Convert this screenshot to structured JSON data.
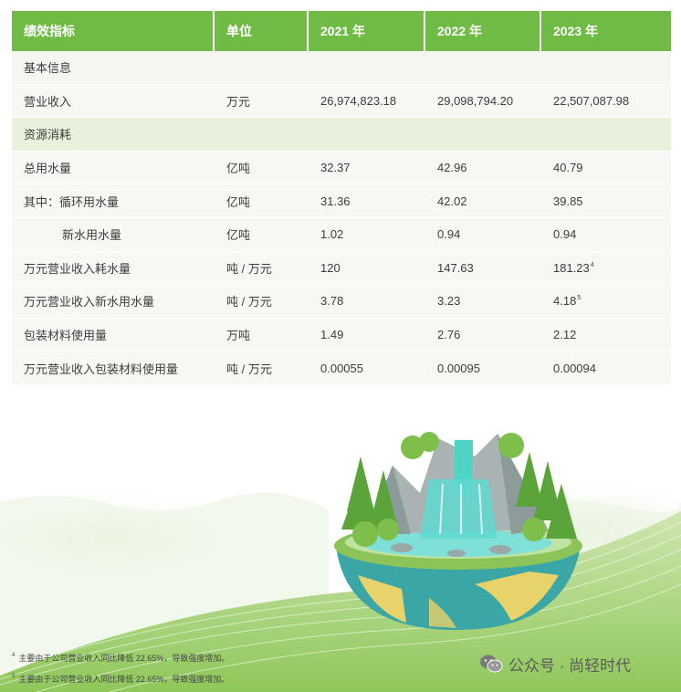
{
  "table": {
    "headers": [
      "绩效指标",
      "单位",
      "2021 年",
      "2022 年",
      "2023 年"
    ],
    "rows": [
      {
        "type": "section",
        "indicator": "基本信息",
        "unit": "",
        "v2021": "",
        "v2022": "",
        "v2023": "",
        "note2023": ""
      },
      {
        "type": "data",
        "indicator": "营业收入",
        "unit": "万元",
        "v2021": "26,974,823.18",
        "v2022": "29,098,794.20",
        "v2023": "22,507,087.98",
        "note2023": ""
      },
      {
        "type": "section",
        "indicator": "资源消耗",
        "unit": "",
        "v2021": "",
        "v2022": "",
        "v2023": "",
        "note2023": ""
      },
      {
        "type": "data",
        "indicator": "总用水量",
        "unit": "亿吨",
        "v2021": "32.37",
        "v2022": "42.96",
        "v2023": "40.79",
        "note2023": ""
      },
      {
        "type": "data",
        "indicator": "其中：循环用水量",
        "unit": "亿吨",
        "v2021": "31.36",
        "v2022": "42.02",
        "v2023": "39.85",
        "note2023": ""
      },
      {
        "type": "data-indent",
        "indicator": "新水用水量",
        "unit": "亿吨",
        "v2021": "1.02",
        "v2022": "0.94",
        "v2023": "0.94",
        "note2023": ""
      },
      {
        "type": "data",
        "indicator": "万元营业收入耗水量",
        "unit": "吨 / 万元",
        "v2021": "120",
        "v2022": "147.63",
        "v2023": "181.23",
        "note2023": "4"
      },
      {
        "type": "data",
        "indicator": "万元营业收入新水用水量",
        "unit": "吨 / 万元",
        "v2021": "3.78",
        "v2022": "3.23",
        "v2023": "4.18",
        "note2023": "5"
      },
      {
        "type": "data",
        "indicator": "包装材料使用量",
        "unit": "万吨",
        "v2021": "1.49",
        "v2022": "2.76",
        "v2023": "2.12",
        "note2023": ""
      },
      {
        "type": "data",
        "indicator": "万元营业收入包装材料使用量",
        "unit": "吨 / 万元",
        "v2021": "0.00055",
        "v2022": "0.00095",
        "v2023": "0.00094",
        "note2023": ""
      }
    ]
  },
  "footnotes": [
    {
      "mark": "4",
      "text": "主要由于公司营业收入同比降低 22.65%，导致强度增加。"
    },
    {
      "mark": "5",
      "text": "主要由于公司营业收入同比降低 22.65%，导致强度增加。"
    }
  ],
  "watermark": {
    "icon": "wechat-icon",
    "text": "公众号 · 尚轻时代"
  },
  "colors": {
    "header_green": "#6fbb45",
    "section_green": "#e9f1dc",
    "row_bg": "#f7f7f4",
    "water": "#5fd8d0"
  }
}
